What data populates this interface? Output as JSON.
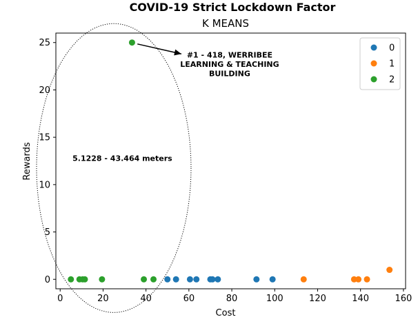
{
  "chart_data": {
    "type": "scatter",
    "title": "COVID-19 Strict Lockdown Factor",
    "subtitle": "K MEANS",
    "xlabel": "Cost",
    "ylabel": "Rewards",
    "xlim": [
      -2,
      161
    ],
    "ylim": [
      -1,
      26
    ],
    "xticks": [
      0,
      20,
      40,
      60,
      80,
      100,
      120,
      140,
      160
    ],
    "yticks": [
      0,
      5,
      10,
      15,
      20,
      25
    ],
    "grid": false,
    "legend_position": "top-right",
    "series": [
      {
        "name": "0",
        "color": "#1f77b4",
        "points": [
          {
            "x": 50,
            "y": 0
          },
          {
            "x": 54,
            "y": 0
          },
          {
            "x": 60.5,
            "y": 0
          },
          {
            "x": 63.5,
            "y": 0
          },
          {
            "x": 70,
            "y": 0
          },
          {
            "x": 71,
            "y": 0
          },
          {
            "x": 73.5,
            "y": 0
          },
          {
            "x": 91.5,
            "y": 0
          },
          {
            "x": 99,
            "y": 0
          }
        ]
      },
      {
        "name": "1",
        "color": "#ff7f0e",
        "points": [
          {
            "x": 113.5,
            "y": 0
          },
          {
            "x": 137,
            "y": 0
          },
          {
            "x": 139,
            "y": 0
          },
          {
            "x": 143,
            "y": 0
          },
          {
            "x": 153.5,
            "y": 1
          }
        ]
      },
      {
        "name": "2",
        "color": "#2ca02c",
        "points": [
          {
            "x": 5,
            "y": 0
          },
          {
            "x": 9,
            "y": 0
          },
          {
            "x": 10.5,
            "y": 0
          },
          {
            "x": 11.5,
            "y": 0
          },
          {
            "x": 19.5,
            "y": 0
          },
          {
            "x": 39,
            "y": 0
          },
          {
            "x": 43.5,
            "y": 0
          },
          {
            "x": 33.5,
            "y": 25
          }
        ]
      }
    ],
    "annotations": [
      {
        "id": "top-point",
        "text_lines": [
          "#1 - 418, WERRIBEE",
          "LEARNING & TEACHING",
          "BUILDING"
        ],
        "arrow_from": {
          "x": 36,
          "y": 24.85
        },
        "arrow_to": {
          "x": 56.5,
          "y": 23.8
        },
        "text_anchor": {
          "x": 79,
          "y": 23.4
        }
      },
      {
        "id": "range",
        "text_lines": [
          "5.1228 - 43.464 meters"
        ],
        "text_anchor": {
          "x": 29,
          "y": 12.5
        }
      }
    ],
    "highlight_ellipse": {
      "center": {
        "x": 25,
        "y": 11.75
      },
      "radius_x": 36,
      "radius_y": 15.25,
      "style": "dotted"
    }
  }
}
